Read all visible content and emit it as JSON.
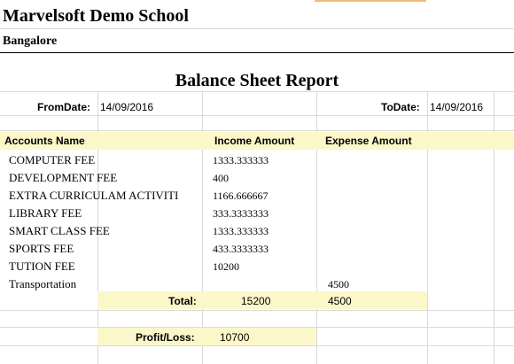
{
  "header": {
    "school_name": "Marvelsoft Demo School",
    "city": "Bangalore",
    "report_title": "Balance Sheet Report"
  },
  "date_range": {
    "from_label": "FromDate:",
    "from_value": "14/09/2016",
    "to_label": "ToDate:",
    "to_value": "14/09/2016"
  },
  "columns": {
    "account": "Accounts Name",
    "income": "Income Amount",
    "expense": "Expense Amount"
  },
  "rows": [
    {
      "account": "COMPUTER FEE",
      "income": "1333.333333",
      "expense": ""
    },
    {
      "account": "DEVELOPMENT FEE",
      "income": "400",
      "expense": ""
    },
    {
      "account": "EXTRA CURRICULAM ACTIVITI",
      "income": "1166.666667",
      "expense": ""
    },
    {
      "account": "LIBRARY FEE",
      "income": "333.3333333",
      "expense": ""
    },
    {
      "account": "SMART CLASS FEE",
      "income": "1333.333333",
      "expense": ""
    },
    {
      "account": "SPORTS FEE",
      "income": "433.3333333",
      "expense": ""
    },
    {
      "account": "TUTION FEE",
      "income": "10200",
      "expense": ""
    },
    {
      "account": "Transportation",
      "income": "",
      "expense": "4500"
    }
  ],
  "total": {
    "label": "Total:",
    "income": "15200",
    "expense": "4500"
  },
  "profit_loss": {
    "label": "Profit/Loss:",
    "value": "10700"
  },
  "colors": {
    "highlight": "#fcf7c9",
    "gridline": "#d9d9d9",
    "accent_tab": "#f5b97a"
  }
}
